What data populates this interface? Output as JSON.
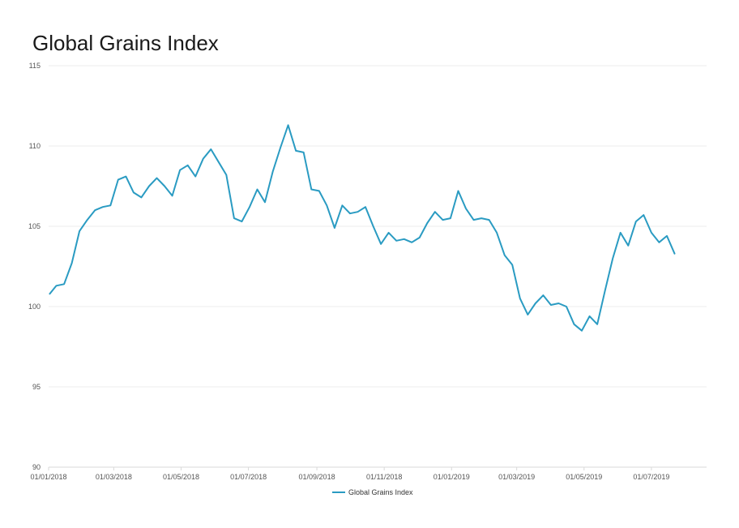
{
  "chart_data": {
    "type": "line",
    "title": "Global Grains Index",
    "xlabel": "",
    "ylabel": "",
    "ylim": [
      90,
      115
    ],
    "yticks": [
      90,
      95,
      100,
      105,
      110,
      115
    ],
    "xlim": [
      "2018-01-01",
      "2019-08-20"
    ],
    "xticks": [
      {
        "date": "2018-01-01",
        "label": "01/01/2018"
      },
      {
        "date": "2018-03-01",
        "label": "01/03/2018"
      },
      {
        "date": "2018-05-01",
        "label": "01/05/2018"
      },
      {
        "date": "2018-07-01",
        "label": "01/07/2018"
      },
      {
        "date": "2018-09-01",
        "label": "01/09/2018"
      },
      {
        "date": "2018-11-01",
        "label": "01/11/2018"
      },
      {
        "date": "2019-01-01",
        "label": "01/01/2019"
      },
      {
        "date": "2019-03-01",
        "label": "01/03/2019"
      },
      {
        "date": "2019-05-01",
        "label": "01/05/2019"
      },
      {
        "date": "2019-07-01",
        "label": "01/07/2019"
      }
    ],
    "grid": true,
    "legend": "bottom",
    "color": "#2a9bc2",
    "series": [
      {
        "name": "Global Grains Index",
        "points": [
          [
            "2018-01-02",
            100.8
          ],
          [
            "2018-01-08",
            101.3
          ],
          [
            "2018-01-15",
            101.4
          ],
          [
            "2018-01-22",
            102.7
          ],
          [
            "2018-01-29",
            104.7
          ],
          [
            "2018-02-05",
            105.4
          ],
          [
            "2018-02-12",
            106.0
          ],
          [
            "2018-02-19",
            106.2
          ],
          [
            "2018-02-26",
            106.3
          ],
          [
            "2018-03-05",
            107.9
          ],
          [
            "2018-03-12",
            108.1
          ],
          [
            "2018-03-19",
            107.1
          ],
          [
            "2018-03-26",
            106.8
          ],
          [
            "2018-04-02",
            107.5
          ],
          [
            "2018-04-09",
            108.0
          ],
          [
            "2018-04-16",
            107.5
          ],
          [
            "2018-04-23",
            106.9
          ],
          [
            "2018-04-30",
            108.5
          ],
          [
            "2018-05-07",
            108.8
          ],
          [
            "2018-05-14",
            108.1
          ],
          [
            "2018-05-21",
            109.2
          ],
          [
            "2018-05-28",
            109.8
          ],
          [
            "2018-06-04",
            109.0
          ],
          [
            "2018-06-11",
            108.2
          ],
          [
            "2018-06-18",
            105.5
          ],
          [
            "2018-06-25",
            105.3
          ],
          [
            "2018-07-02",
            106.2
          ],
          [
            "2018-07-09",
            107.3
          ],
          [
            "2018-07-16",
            106.5
          ],
          [
            "2018-07-23",
            108.4
          ],
          [
            "2018-07-30",
            109.9
          ],
          [
            "2018-08-06",
            111.3
          ],
          [
            "2018-08-13",
            109.7
          ],
          [
            "2018-08-20",
            109.6
          ],
          [
            "2018-08-27",
            107.3
          ],
          [
            "2018-09-03",
            107.2
          ],
          [
            "2018-09-10",
            106.3
          ],
          [
            "2018-09-17",
            104.9
          ],
          [
            "2018-09-24",
            106.3
          ],
          [
            "2018-10-01",
            105.8
          ],
          [
            "2018-10-08",
            105.9
          ],
          [
            "2018-10-15",
            106.2
          ],
          [
            "2018-10-22",
            105.0
          ],
          [
            "2018-10-29",
            103.9
          ],
          [
            "2018-11-05",
            104.6
          ],
          [
            "2018-11-12",
            104.1
          ],
          [
            "2018-11-19",
            104.2
          ],
          [
            "2018-11-26",
            104.0
          ],
          [
            "2018-12-03",
            104.3
          ],
          [
            "2018-12-10",
            105.2
          ],
          [
            "2018-12-17",
            105.9
          ],
          [
            "2018-12-24",
            105.4
          ],
          [
            "2018-12-31",
            105.5
          ],
          [
            "2019-01-07",
            107.2
          ],
          [
            "2019-01-14",
            106.1
          ],
          [
            "2019-01-21",
            105.4
          ],
          [
            "2019-01-28",
            105.5
          ],
          [
            "2019-02-04",
            105.4
          ],
          [
            "2019-02-11",
            104.6
          ],
          [
            "2019-02-18",
            103.2
          ],
          [
            "2019-02-25",
            102.6
          ],
          [
            "2019-03-04",
            100.5
          ],
          [
            "2019-03-11",
            99.5
          ],
          [
            "2019-03-18",
            100.2
          ],
          [
            "2019-03-25",
            100.7
          ],
          [
            "2019-04-01",
            100.1
          ],
          [
            "2019-04-08",
            100.2
          ],
          [
            "2019-04-15",
            100.0
          ],
          [
            "2019-04-22",
            98.9
          ],
          [
            "2019-04-29",
            98.5
          ],
          [
            "2019-05-06",
            99.4
          ],
          [
            "2019-05-13",
            98.9
          ],
          [
            "2019-05-20",
            101.0
          ],
          [
            "2019-05-27",
            103.0
          ],
          [
            "2019-06-03",
            104.6
          ],
          [
            "2019-06-10",
            103.8
          ],
          [
            "2019-06-17",
            105.3
          ],
          [
            "2019-06-24",
            105.7
          ],
          [
            "2019-07-01",
            104.6
          ],
          [
            "2019-07-08",
            104.0
          ],
          [
            "2019-07-15",
            104.4
          ],
          [
            "2019-07-22",
            103.3
          ]
        ]
      }
    ]
  }
}
